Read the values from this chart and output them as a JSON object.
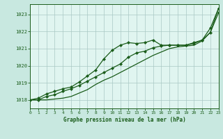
{
  "title": "Graphe pression niveau de la mer (hPa)",
  "bg_color": "#c8e8e0",
  "plot_bg_color": "#e0f5f0",
  "grid_color": "#a8c8c4",
  "line_color": "#1a5c1a",
  "xlim": [
    0,
    23
  ],
  "ylim": [
    1017.5,
    1023.6
  ],
  "xticks": [
    0,
    1,
    2,
    3,
    4,
    5,
    6,
    7,
    8,
    9,
    10,
    11,
    12,
    13,
    14,
    15,
    16,
    17,
    18,
    19,
    20,
    21,
    22,
    23
  ],
  "yticks": [
    1018,
    1019,
    1020,
    1021,
    1022,
    1023
  ],
  "series1_x": [
    0,
    1,
    2,
    3,
    4,
    5,
    6,
    7,
    8,
    9,
    10,
    11,
    12,
    13,
    14,
    15,
    16,
    17,
    18,
    19,
    20,
    21,
    22,
    23
  ],
  "series1_y": [
    1018.0,
    1018.1,
    1018.35,
    1018.5,
    1018.65,
    1018.75,
    1019.05,
    1019.4,
    1019.75,
    1020.4,
    1020.9,
    1021.2,
    1021.35,
    1021.3,
    1021.35,
    1021.5,
    1021.2,
    1021.2,
    1021.2,
    1021.2,
    1021.35,
    1021.5,
    1022.2,
    1023.35
  ],
  "series2_x": [
    0,
    1,
    2,
    3,
    4,
    5,
    6,
    7,
    8,
    9,
    10,
    11,
    12,
    13,
    14,
    15,
    16,
    17,
    18,
    19,
    20,
    21,
    22,
    23
  ],
  "series2_y": [
    1018.0,
    1018.0,
    1018.2,
    1018.3,
    1018.5,
    1018.65,
    1018.85,
    1019.1,
    1019.35,
    1019.6,
    1019.85,
    1020.1,
    1020.5,
    1020.75,
    1020.85,
    1021.05,
    1021.15,
    1021.2,
    1021.2,
    1021.2,
    1021.3,
    1021.5,
    1021.95,
    1023.1
  ],
  "series3_x": [
    0,
    1,
    2,
    3,
    4,
    5,
    6,
    7,
    8,
    9,
    10,
    11,
    12,
    13,
    14,
    15,
    16,
    17,
    18,
    19,
    20,
    21,
    22,
    23
  ],
  "series3_y": [
    1018.0,
    1018.0,
    1018.0,
    1018.05,
    1018.1,
    1018.2,
    1018.4,
    1018.6,
    1018.9,
    1019.15,
    1019.35,
    1019.6,
    1019.85,
    1020.1,
    1020.35,
    1020.6,
    1020.8,
    1021.0,
    1021.1,
    1021.15,
    1021.2,
    1021.45,
    1021.95,
    1023.35
  ],
  "ylabel_fontsize": 5,
  "xlabel_fontsize": 5.5,
  "tick_fontsize": 4.5,
  "linewidth": 0.9,
  "markersize": 2.2
}
